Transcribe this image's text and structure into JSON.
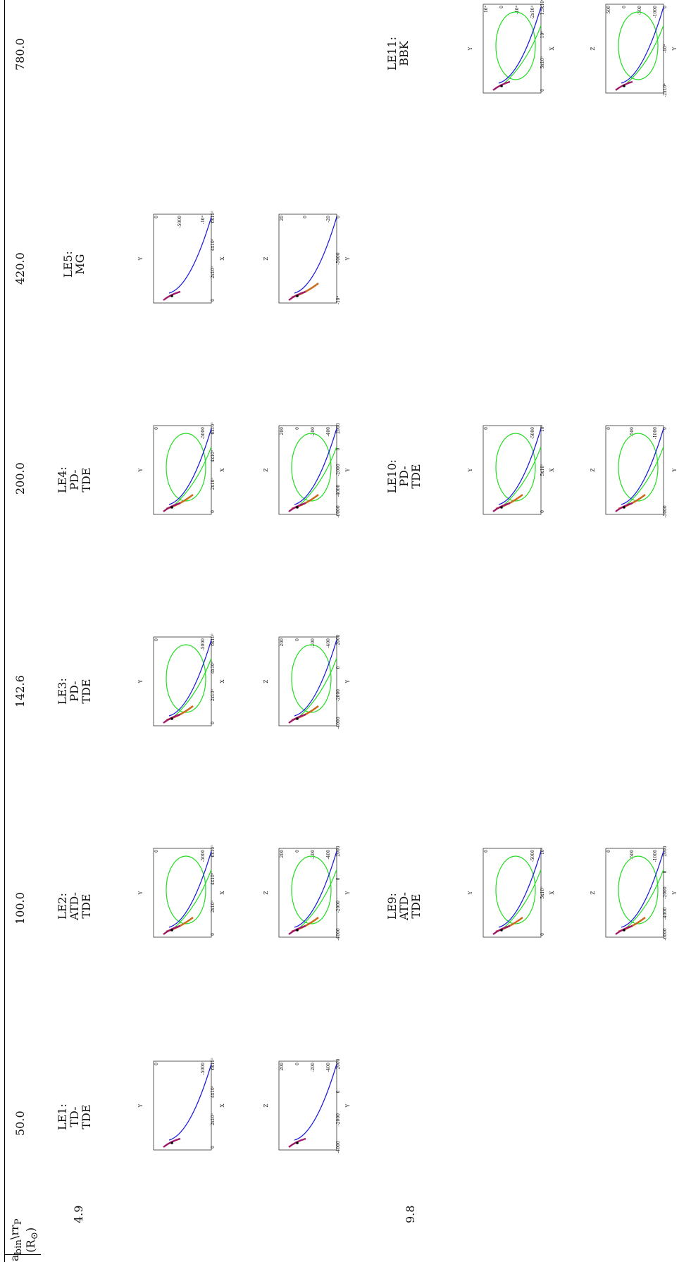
{
  "table": {
    "corner_header": {
      "line1": "a",
      "sub1": "bin",
      "sep": "\\r",
      "sub2": "P",
      "line2": "(R",
      "sun": "⊙",
      "close": ")"
    },
    "row_labels": [
      "4.9",
      "9.8"
    ],
    "columns": [
      "50.0",
      "100.0",
      "142.6",
      "200.0",
      "420.0",
      "780.0"
    ],
    "cases": [
      {
        "id": "LE1",
        "lines": [
          "LE1:",
          "TD-",
          "TDE"
        ]
      },
      {
        "id": "LE2",
        "lines": [
          "LE2:",
          "ATD-",
          "TDE"
        ]
      },
      {
        "id": "LE3",
        "lines": [
          "LE3:",
          "PD-",
          "TDE"
        ]
      },
      {
        "id": "LE4",
        "lines": [
          "LE4:",
          "PD-",
          "TDE"
        ]
      },
      {
        "id": "LE5",
        "lines": [
          "LE5:",
          "MG"
        ]
      },
      {
        "id": "LE9",
        "lines": [
          "LE9:",
          "ATD-",
          "TDE"
        ]
      },
      {
        "id": "LE10",
        "lines": [
          "LE10:",
          "PD-",
          "TDE"
        ]
      },
      {
        "id": "LE11",
        "lines": [
          "LE11:",
          "BBK"
        ]
      }
    ]
  },
  "panels": [
    {
      "id": "le1-xy",
      "ylabel": "Y",
      "xlabel": "X",
      "yticks": [
        "0",
        "-5000"
      ],
      "xticks": [
        "0",
        "2x10⁵",
        "4x10⁵",
        "6x10⁵"
      ],
      "has_ellipse": false,
      "has_blue": true,
      "has_orange": false
    },
    {
      "id": "le1-yz",
      "ylabel": "Z",
      "xlabel": "Y",
      "yticks": [
        "200",
        "0",
        "-200",
        "-400"
      ],
      "xticks": [
        "-4000",
        "-2000",
        "0",
        "2000"
      ],
      "has_ellipse": false,
      "has_blue": true,
      "has_orange": false
    },
    {
      "id": "le2-xy",
      "ylabel": "Y",
      "xlabel": "X",
      "yticks": [
        "0",
        "-5000"
      ],
      "xticks": [
        "0",
        "2x10⁵",
        "4x10⁵",
        "6x10⁵"
      ],
      "has_ellipse": true,
      "has_blue": true,
      "has_orange": true
    },
    {
      "id": "le2-yz",
      "ylabel": "Z",
      "xlabel": "Y",
      "yticks": [
        "200",
        "0",
        "-200",
        "-400"
      ],
      "xticks": [
        "-4000",
        "-2000",
        "0",
        "2000"
      ],
      "has_ellipse": true,
      "has_blue": true,
      "has_orange": true
    },
    {
      "id": "le3-xy",
      "ylabel": "Y",
      "xlabel": "X",
      "yticks": [
        "0",
        "-5000"
      ],
      "xticks": [
        "0",
        "2x10⁵",
        "4x10⁵",
        "6x10⁵"
      ],
      "has_ellipse": true,
      "has_blue": true,
      "has_orange": true
    },
    {
      "id": "le3-yz",
      "ylabel": "Z",
      "xlabel": "Y",
      "yticks": [
        "200",
        "0",
        "-200",
        "-400"
      ],
      "xticks": [
        "-4000",
        "-2000",
        "0",
        "2000"
      ],
      "has_ellipse": true,
      "has_blue": true,
      "has_orange": true
    },
    {
      "id": "le4-xy",
      "ylabel": "Y",
      "xlabel": "X",
      "yticks": [
        "0",
        "-5000"
      ],
      "xticks": [
        "0",
        "2x10⁵",
        "4x10⁵",
        "6x10⁵"
      ],
      "has_ellipse": true,
      "has_blue": true,
      "has_orange": true
    },
    {
      "id": "le4-yz",
      "ylabel": "Z",
      "xlabel": "Y",
      "yticks": [
        "200",
        "0",
        "-200",
        "-400"
      ],
      "xticks": [
        "-6000",
        "-4000",
        "-2000",
        "0",
        "2000"
      ],
      "has_ellipse": true,
      "has_blue": true,
      "has_orange": true
    },
    {
      "id": "le5-xy",
      "ylabel": "Y",
      "xlabel": "X",
      "yticks": [
        "0",
        "-5000",
        "-10⁴"
      ],
      "xticks": [
        "0",
        "2x10⁵",
        "4x10⁵",
        "6x10⁵"
      ],
      "has_ellipse": false,
      "has_blue": true,
      "has_orange": false
    },
    {
      "id": "le5-yz",
      "ylabel": "Z",
      "xlabel": "Y",
      "yticks": [
        "20",
        "0",
        "-20"
      ],
      "xticks": [
        "-10⁴",
        "-5000",
        "0"
      ],
      "has_ellipse": false,
      "has_blue": true,
      "has_orange": true
    },
    {
      "id": "le9-xy",
      "ylabel": "Y",
      "xlabel": "X",
      "yticks": [
        "0",
        "-5000"
      ],
      "xticks": [
        "0",
        "5x10⁵",
        "10⁶"
      ],
      "has_ellipse": true,
      "has_blue": true,
      "has_orange": true
    },
    {
      "id": "le9-yz",
      "ylabel": "Z",
      "xlabel": "Y",
      "yticks": [
        "0",
        "-500",
        "-1000"
      ],
      "xticks": [
        "-6000",
        "-4000",
        "-2000",
        "0",
        "2000"
      ],
      "has_ellipse": true,
      "has_blue": true,
      "has_orange": true
    },
    {
      "id": "le10-xy",
      "ylabel": "Y",
      "xlabel": "X",
      "yticks": [
        "0",
        "-5000"
      ],
      "xticks": [
        "0",
        "5x10⁵",
        "10⁶"
      ],
      "has_ellipse": true,
      "has_blue": true,
      "has_orange": true
    },
    {
      "id": "le10-yz",
      "ylabel": "Z",
      "xlabel": "Y",
      "yticks": [
        "0",
        "-500",
        "-1000"
      ],
      "xticks": [
        "-5000",
        "0"
      ],
      "has_ellipse": true,
      "has_blue": true,
      "has_orange": true
    },
    {
      "id": "le11-xy",
      "ylabel": "Y",
      "xlabel": "X",
      "yticks": [
        "10⁴",
        "0",
        "-10⁴",
        "-2x10⁴"
      ],
      "xticks": [
        "0",
        "5x10⁵",
        "10⁶",
        "1.5x10⁶"
      ],
      "has_ellipse": true,
      "has_blue": true,
      "has_orange": false
    },
    {
      "id": "le11-yz",
      "ylabel": "Z",
      "xlabel": "Y",
      "yticks": [
        "500",
        "0",
        "-500",
        "-1000"
      ],
      "xticks": [
        "-2x10⁴",
        "-10⁴",
        "0"
      ],
      "has_ellipse": true,
      "has_blue": true,
      "has_orange": false
    }
  ]
}
